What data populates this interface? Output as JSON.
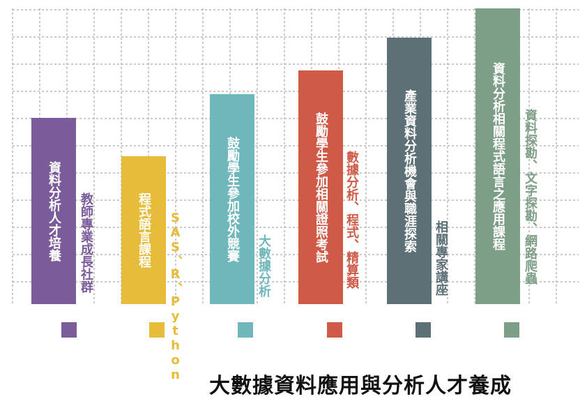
{
  "colors": {
    "grid": "#b8b8b8",
    "purple": "#7b5b9a",
    "yellow": "#e6bc3a",
    "teal": "#6fb7bb",
    "red": "#cf5a47",
    "slate": "#5c7076",
    "sage": "#7e9f87"
  },
  "items": [
    {
      "bar_label": "資料分析人才培養",
      "side_label": "教師專業成長社群",
      "level": 0.63,
      "color": "#7b5b9a"
    },
    {
      "bar_label": "程式語言課程",
      "side_label": "SAS、R、Python",
      "level": 0.5,
      "color": "#e6bc3a"
    },
    {
      "bar_label": "鼓勵學生參加校外競賽",
      "side_label": "大數據分析",
      "level": 0.71,
      "color": "#6fb7bb"
    },
    {
      "bar_label": "鼓勵學生參加相關證照考試",
      "side_label": "數據分析、程式、精算類",
      "level": 0.79,
      "color": "#cf5a47"
    },
    {
      "bar_label": "產業資料分析機會與職涯探索",
      "side_label": "相關專家講座",
      "level": 0.9,
      "color": "#5c7076"
    },
    {
      "bar_label": "資料分析相關程式語言之應用課程",
      "side_label": "資料探勘、文字探勘、網路爬蟲",
      "level": 1.0,
      "color": "#7e9f87"
    }
  ],
  "footer_title": "大數據資料應用與分析人才養成"
}
